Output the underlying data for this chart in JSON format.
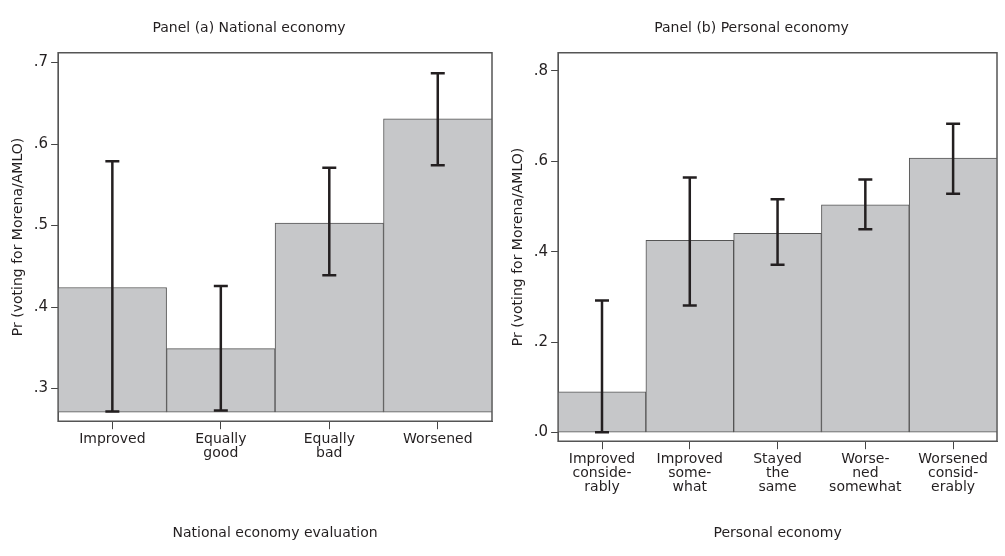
{
  "chart_data": [
    {
      "type": "bar",
      "title": "Panel (a) National economy",
      "xlabel": "National economy evaluation",
      "ylabel": "Pr (voting for Morena/AMLO)",
      "categories": [
        "Improved",
        "Equally\ngood",
        "Equally\nbad",
        "Worsened"
      ],
      "base": [
        0.271,
        0.271,
        0.271,
        0.271
      ],
      "values": [
        0.153,
        0.078,
        0.232,
        0.36
      ],
      "errors": [
        [
          0.272,
          0.579
        ],
        [
          0.273,
          0.426
        ],
        [
          0.439,
          0.571
        ],
        [
          0.574,
          0.687
        ]
      ],
      "color": "#c6c7c9",
      "ylim": [
        0.26,
        0.712
      ],
      "yticks": [
        {
          "value": 0.3,
          "label": ".3"
        },
        {
          "value": 0.4,
          "label": ".4"
        },
        {
          "value": 0.5,
          "label": ".5"
        },
        {
          "value": 0.6,
          "label": ".6"
        },
        {
          "value": 0.7,
          "label": ".7"
        }
      ],
      "grid": false
    },
    {
      "type": "bar",
      "title": "Panel (b) Personal economy",
      "xlabel": "Personal economy",
      "ylabel": "Pr (voting for Morena/AMLO)",
      "categories": [
        "Improved\nconside-\nrably",
        "Improved\nsome-\nwhat",
        "Stayed\nthe\nsame",
        "Worse-\nned\nsomewhat",
        "Worsened\nconsid-\nerably"
      ],
      "values": [
        0.09,
        0.425,
        0.441,
        0.504,
        0.607
      ],
      "errors": [
        [
          0.001,
          0.292
        ],
        [
          0.281,
          0.564
        ],
        [
          0.371,
          0.516
        ],
        [
          0.45,
          0.56
        ],
        [
          0.528,
          0.683
        ]
      ],
      "color": "#c6c7c9",
      "ylim": [
        -0.019,
        0.84
      ],
      "yticks": [
        {
          "value": 0,
          "label": ".0"
        },
        {
          "value": 0.2,
          "label": ".2"
        },
        {
          "value": 0.4,
          "label": ".4"
        },
        {
          "value": 0.6,
          "label": ".6"
        },
        {
          "value": 0.8,
          "label": ".8"
        }
      ],
      "grid": false
    }
  ]
}
